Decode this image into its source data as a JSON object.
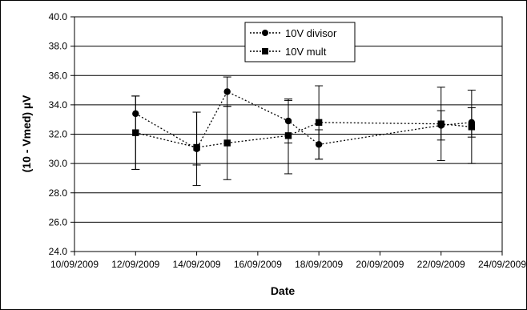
{
  "chart_data": {
    "type": "scatter",
    "title": "",
    "xlabel": "Date",
    "ylabel": "(10 - Vmed) µV",
    "ylim": [
      24.0,
      40.0
    ],
    "y_ticks": [
      "24.0",
      "26.0",
      "28.0",
      "30.0",
      "32.0",
      "34.0",
      "36.0",
      "38.0",
      "40.0"
    ],
    "x_ticks": [
      "10/09/2009",
      "12/09/2009",
      "14/09/2009",
      "16/09/2009",
      "18/09/2009",
      "20/09/2009",
      "22/09/2009",
      "24/09/2009"
    ],
    "xlim": [
      "2009-09-10",
      "2009-09-24"
    ],
    "grid": "horizontal",
    "legend_position": "top-center",
    "series": [
      {
        "name": "10V divisor",
        "marker": "circle",
        "line": "dotted",
        "color": "#000000",
        "points": [
          {
            "x": "2009-09-12",
            "y": 33.4,
            "err_low": 29.6,
            "err_high": 34.6
          },
          {
            "x": "2009-09-14",
            "y": 31.0,
            "err_low": 28.5,
            "err_high": 33.5
          },
          {
            "x": "2009-09-15",
            "y": 34.9,
            "err_low": 33.9,
            "err_high": 35.9
          },
          {
            "x": "2009-09-17",
            "y": 32.9,
            "err_low": 31.4,
            "err_high": 34.4
          },
          {
            "x": "2009-09-18",
            "y": 31.3,
            "err_low": 30.3,
            "err_high": 32.3
          },
          {
            "x": "2009-09-22",
            "y": 32.6,
            "err_low": 31.6,
            "err_high": 33.6
          },
          {
            "x": "2009-09-23",
            "y": 32.8,
            "err_low": 31.8,
            "err_high": 33.8
          }
        ]
      },
      {
        "name": "10V mult",
        "marker": "square",
        "line": "dotted",
        "color": "#000000",
        "points": [
          {
            "x": "2009-09-12",
            "y": 32.1,
            "err_low": 29.6,
            "err_high": 34.6
          },
          {
            "x": "2009-09-14",
            "y": 31.1,
            "err_low": 29.9,
            "err_high": 33.5
          },
          {
            "x": "2009-09-15",
            "y": 31.4,
            "err_low": 28.9,
            "err_high": 33.9
          },
          {
            "x": "2009-09-17",
            "y": 31.9,
            "err_low": 29.3,
            "err_high": 34.3
          },
          {
            "x": "2009-09-18",
            "y": 32.8,
            "err_low": 30.3,
            "err_high": 35.3
          },
          {
            "x": "2009-09-22",
            "y": 32.7,
            "err_low": 30.2,
            "err_high": 35.2
          },
          {
            "x": "2009-09-23",
            "y": 32.5,
            "err_low": 30.0,
            "err_high": 35.0
          }
        ]
      }
    ]
  }
}
